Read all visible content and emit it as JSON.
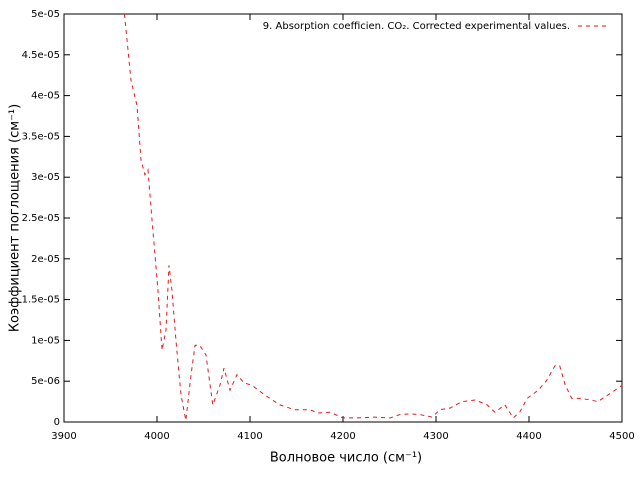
{
  "chart_data": {
    "type": "line",
    "x_label": "Волновое число (см⁻¹)",
    "y_label": "Коэффициент поглощения (см⁻¹)",
    "xlim": [
      3900,
      4500
    ],
    "xticks": [
      3900,
      4000,
      4100,
      4200,
      4300,
      4400,
      4500
    ],
    "ylim": [
      0,
      5e-05
    ],
    "yticks": [
      0,
      {
        "value": 5e-06,
        "label": "5e-06"
      },
      {
        "value": 1e-05,
        "label": "1e-05"
      },
      {
        "value": 1.5e-05,
        "label": "1.5e-05"
      },
      {
        "value": 2e-05,
        "label": "2e-05"
      },
      {
        "value": 2.5e-05,
        "label": "2.5e-05"
      },
      {
        "value": 3e-05,
        "label": "3e-05"
      },
      {
        "value": 3.5e-05,
        "label": "3.5e-05"
      },
      {
        "value": 4e-05,
        "label": "4e-05"
      },
      {
        "value": 4.5e-05,
        "label": "4.5e-05"
      },
      {
        "value": 5e-05,
        "label": "5e-05"
      }
    ],
    "grid": false,
    "legend": "top-right",
    "dashed": true,
    "x": [
      3965,
      3972,
      3978.5,
      3982.8,
      3987,
      3990.3,
      3994.6,
      4001,
      4005.4,
      4009.7,
      4012.9,
      4016,
      4020.4,
      4025.8,
      4031,
      4036.6,
      4040.9,
      4046,
      4052.7,
      4060,
      4067.7,
      4072,
      4078.5,
      4086,
      4093.5,
      4102,
      4116,
      4132,
      4148,
      4164.5,
      4173,
      4186,
      4200,
      4216,
      4234,
      4250.5,
      4261,
      4272,
      4283,
      4296,
      4304,
      4315,
      4328,
      4342,
      4355,
      4363.4,
      4374,
      4383,
      4390,
      4398,
      4410,
      4419,
      4428,
      4433,
      4439,
      4446,
      4455,
      4466,
      4474,
      4482,
      4490,
      4500
    ],
    "series": [
      {
        "name": "9. Absorption coefficien. CO₂. Corrected experimental values.",
        "color": "#e41a1c",
        "values": [
          5e-05,
          4.19e-05,
          3.88e-05,
          3.21e-05,
          3.03e-05,
          3.09e-05,
          2.48e-05,
          1.62e-05,
          8.8e-06,
          1.13e-05,
          1.92e-05,
          1.62e-05,
          1e-05,
          3.3e-06,
          2e-07,
          5.8e-06,
          9.4e-06,
          9.4e-06,
          8.2e-06,
          2.1e-06,
          4.5e-06,
          6.6e-06,
          3.9e-06,
          5.8e-06,
          4.8e-06,
          4.5e-06,
          3.3e-06,
          2.1e-06,
          1.5e-06,
          1.5e-06,
          1.1e-06,
          1.2e-06,
          5e-07,
          5e-07,
          6e-07,
          5e-07,
          9e-07,
          1e-06,
          9e-07,
          6e-07,
          1.5e-06,
          1.7e-06,
          2.5e-06,
          2.7e-06,
          2.1e-06,
          1.2e-06,
          2.1e-06,
          5e-07,
          1.2e-06,
          2.9e-06,
          3.9e-06,
          5.1e-06,
          6.9e-06,
          6.9e-06,
          4.5e-06,
          2.9e-06,
          2.9e-06,
          2.7e-06,
          2.5e-06,
          3.1e-06,
          3.7e-06,
          4.5e-06
        ]
      }
    ]
  }
}
